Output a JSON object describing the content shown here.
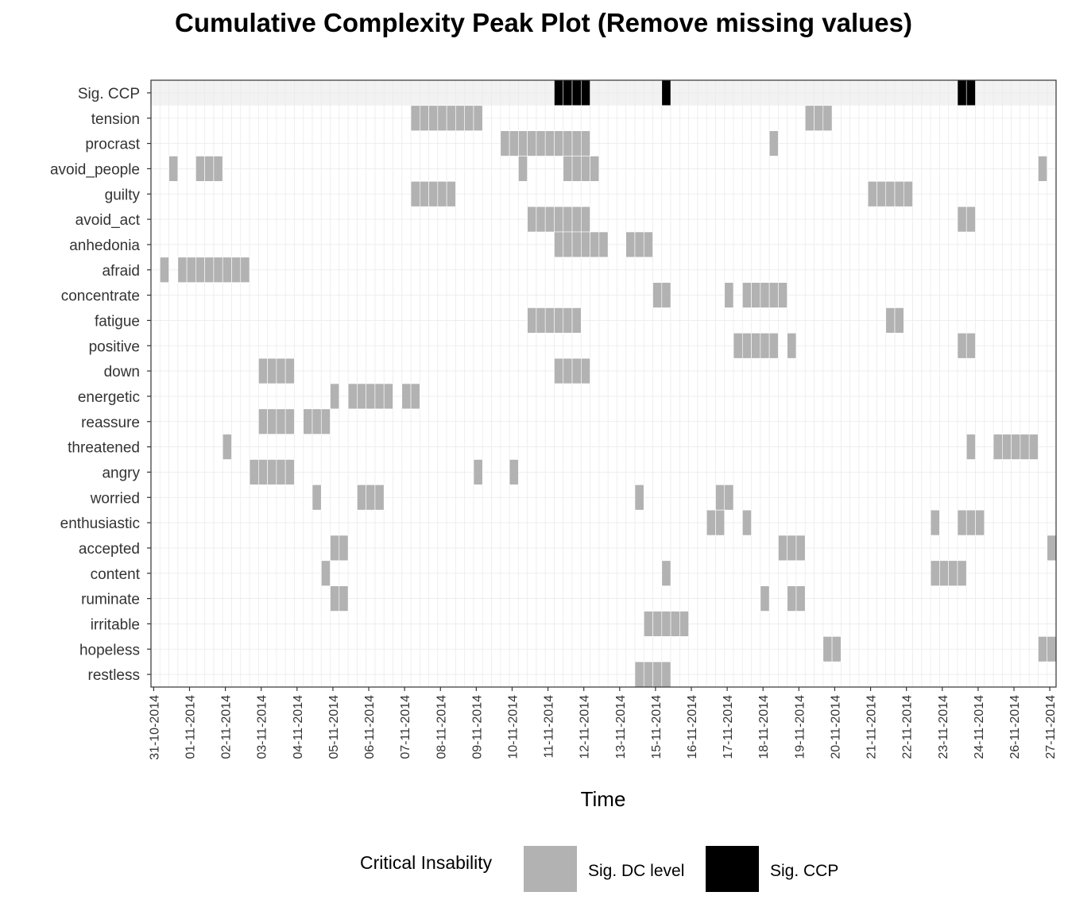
{
  "chart_data": {
    "type": "heatmap",
    "title": "Cumulative Complexity Peak Plot (Remove missing values)",
    "xlabel": "Time",
    "ylabel": "",
    "n_time_points": 101,
    "x_tick_labels": [
      {
        "t": 0.3,
        "label": "31-10-2014"
      },
      {
        "t": 4.3,
        "label": "01-11-2014"
      },
      {
        "t": 8.3,
        "label": "02-11-2014"
      },
      {
        "t": 12.3,
        "label": "03-11-2014"
      },
      {
        "t": 16.3,
        "label": "04-11-2014"
      },
      {
        "t": 20.3,
        "label": "05-11-2014"
      },
      {
        "t": 24.3,
        "label": "06-11-2014"
      },
      {
        "t": 28.3,
        "label": "07-11-2014"
      },
      {
        "t": 32.3,
        "label": "08-11-2014"
      },
      {
        "t": 36.3,
        "label": "09-11-2014"
      },
      {
        "t": 40.3,
        "label": "10-11-2014"
      },
      {
        "t": 44.3,
        "label": "11-11-2014"
      },
      {
        "t": 48.3,
        "label": "12-11-2014"
      },
      {
        "t": 52.3,
        "label": "13-11-2014"
      },
      {
        "t": 56.3,
        "label": "15-11-2014"
      },
      {
        "t": 60.3,
        "label": "16-11-2014"
      },
      {
        "t": 64.3,
        "label": "17-11-2014"
      },
      {
        "t": 68.3,
        "label": "18-11-2014"
      },
      {
        "t": 72.3,
        "label": "19-11-2014"
      },
      {
        "t": 76.3,
        "label": "20-11-2014"
      },
      {
        "t": 80.3,
        "label": "21-11-2014"
      },
      {
        "t": 84.3,
        "label": "22-11-2014"
      },
      {
        "t": 88.3,
        "label": "23-11-2014"
      },
      {
        "t": 92.3,
        "label": "24-11-2014"
      },
      {
        "t": 96.3,
        "label": "26-11-2014"
      },
      {
        "t": 100.3,
        "label": "27-11-2014"
      }
    ],
    "rows": [
      {
        "name": "Sig. CCP",
        "kind": "ccp",
        "cells": [
          45,
          46,
          47,
          48,
          57,
          90,
          91
        ]
      },
      {
        "name": "tension",
        "kind": "dc",
        "cells": [
          29,
          30,
          31,
          32,
          33,
          34,
          35,
          36,
          73,
          74,
          75
        ]
      },
      {
        "name": "procrast",
        "kind": "dc",
        "cells": [
          39,
          40,
          41,
          42,
          43,
          44,
          45,
          46,
          47,
          48,
          69
        ]
      },
      {
        "name": "avoid_people",
        "kind": "dc",
        "cells": [
          2,
          5,
          6,
          7,
          41,
          46,
          47,
          48,
          49,
          99
        ]
      },
      {
        "name": "guilty",
        "kind": "dc",
        "cells": [
          29,
          30,
          31,
          32,
          33,
          80,
          81,
          82,
          83,
          84
        ]
      },
      {
        "name": "avoid_act",
        "kind": "dc",
        "cells": [
          42,
          43,
          44,
          45,
          46,
          47,
          48,
          90,
          91
        ]
      },
      {
        "name": "anhedonia",
        "kind": "dc",
        "cells": [
          45,
          46,
          47,
          48,
          49,
          50,
          53,
          54,
          55
        ]
      },
      {
        "name": "afraid",
        "kind": "dc",
        "cells": [
          1,
          3,
          4,
          5,
          6,
          7,
          8,
          9,
          10
        ]
      },
      {
        "name": "concentrate",
        "kind": "dc",
        "cells": [
          56,
          57,
          64,
          66,
          67,
          68,
          69,
          70
        ]
      },
      {
        "name": "fatigue",
        "kind": "dc",
        "cells": [
          42,
          43,
          44,
          45,
          46,
          47,
          82,
          83
        ]
      },
      {
        "name": "positive",
        "kind": "dc",
        "cells": [
          65,
          66,
          67,
          68,
          69,
          71,
          90,
          91
        ]
      },
      {
        "name": "down",
        "kind": "dc",
        "cells": [
          12,
          13,
          14,
          15,
          45,
          46,
          47,
          48
        ]
      },
      {
        "name": "energetic",
        "kind": "dc",
        "cells": [
          20,
          22,
          23,
          24,
          25,
          26,
          28,
          29
        ]
      },
      {
        "name": "reassure",
        "kind": "dc",
        "cells": [
          12,
          13,
          14,
          15,
          17,
          18,
          19
        ]
      },
      {
        "name": "threatened",
        "kind": "dc",
        "cells": [
          8,
          91,
          94,
          95,
          96,
          97,
          98
        ]
      },
      {
        "name": "angry",
        "kind": "dc",
        "cells": [
          11,
          12,
          13,
          14,
          15,
          36,
          40
        ]
      },
      {
        "name": "worried",
        "kind": "dc",
        "cells": [
          18,
          23,
          24,
          25,
          54,
          63,
          64
        ]
      },
      {
        "name": "enthusiastic",
        "kind": "dc",
        "cells": [
          62,
          63,
          66,
          87,
          90,
          91,
          92
        ]
      },
      {
        "name": "accepted",
        "kind": "dc",
        "cells": [
          20,
          21,
          70,
          71,
          72,
          100
        ]
      },
      {
        "name": "content",
        "kind": "dc",
        "cells": [
          19,
          57,
          87,
          88,
          89,
          90
        ]
      },
      {
        "name": "ruminate",
        "kind": "dc",
        "cells": [
          20,
          21,
          68,
          71,
          72
        ]
      },
      {
        "name": "irritable",
        "kind": "dc",
        "cells": [
          55,
          56,
          57,
          58,
          59
        ]
      },
      {
        "name": "hopeless",
        "kind": "dc",
        "cells": [
          75,
          76,
          99,
          100
        ]
      },
      {
        "name": "restless",
        "kind": "dc",
        "cells": [
          54,
          55,
          56,
          57
        ]
      }
    ],
    "colors": {
      "sig_dc": "#b2b2b2",
      "sig_ccp": "#000000",
      "ccp_row_bg": "#f2f2f2",
      "grid": "#ebebeb"
    },
    "legend": {
      "position": "bottom",
      "title": "Critical Insability",
      "items": [
        {
          "label": "Sig. DC level",
          "color": "#b2b2b2"
        },
        {
          "label": "Sig. CCP",
          "color": "#000000"
        }
      ]
    },
    "grid": true
  }
}
